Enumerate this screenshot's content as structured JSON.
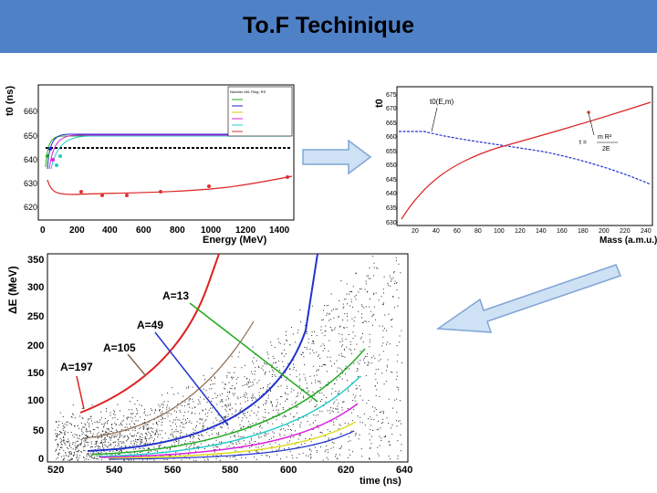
{
  "slide": {
    "title": "To.F Techinique"
  },
  "colors": {
    "header": "#4f81c7",
    "arrow_fill": "#cfe1f4",
    "arrow_stroke": "#7fa6d6"
  },
  "top_left_plot": {
    "ylabel": "t0 (ns)",
    "xlabel": "Energy (MeV)",
    "x_ticks": [
      "0",
      "200",
      "400",
      "600",
      "800",
      "1000",
      "1200",
      "1400"
    ],
    "y_ticks": [
      "620",
      "630",
      "640",
      "650",
      "660"
    ],
    "legend_title": "Number 461 Ring: RS"
  },
  "top_right_plot": {
    "ylabel": "t0",
    "xlabel": "Mass (a.m.u.)",
    "x_ticks": [
      "20",
      "40",
      "60",
      "80",
      "100",
      "120",
      "140",
      "160",
      "180",
      "200",
      "220",
      "240"
    ],
    "y_ticks": [
      "630",
      "635",
      "640",
      "645",
      "650",
      "655",
      "660",
      "665",
      "670",
      "675"
    ],
    "annotation_1": "t0(E,m)",
    "annotation_2_prefix": "t =",
    "annotation_2_num": "m R²",
    "annotation_2_den": "2E"
  },
  "bottom_plot": {
    "ylabel": "ΔE (MeV)",
    "xlabel": "time (ns)",
    "x_ticks": [
      "520",
      "540",
      "560",
      "580",
      "600",
      "620",
      "640"
    ],
    "y_ticks": [
      "0",
      "50",
      "100",
      "150",
      "200",
      "250",
      "300",
      "350"
    ],
    "labels": [
      "A=13",
      "A=49",
      "A=105",
      "A=197"
    ]
  }
}
